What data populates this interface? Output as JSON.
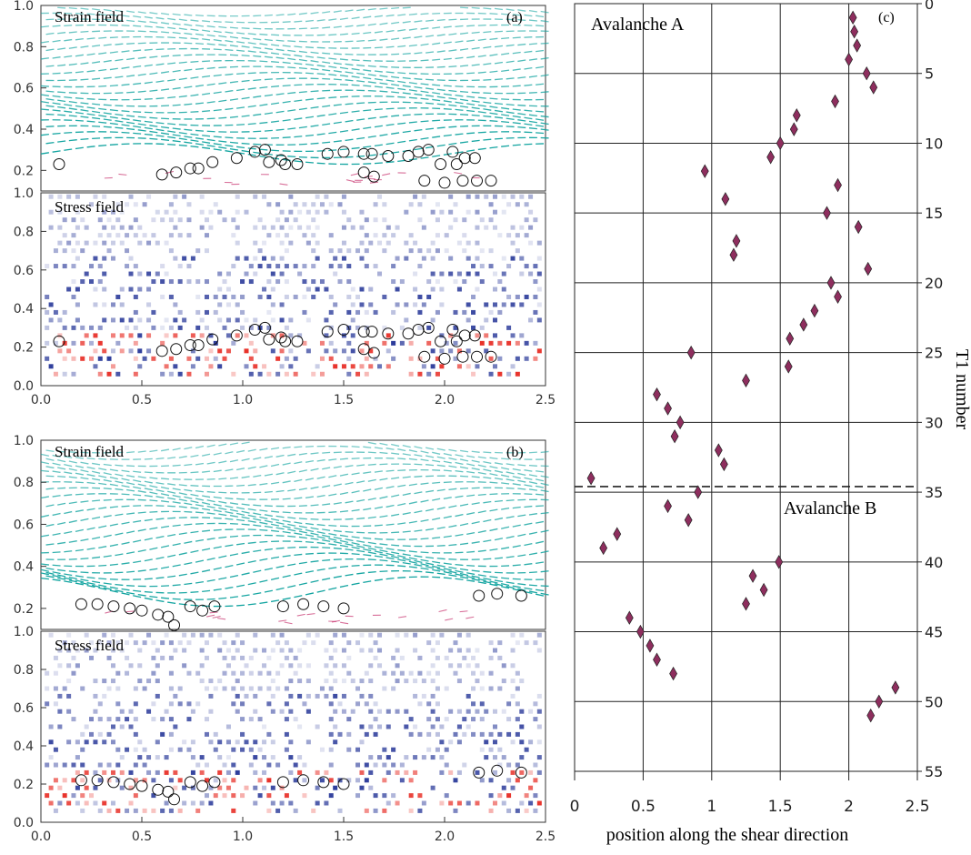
{
  "chart_data": [
    {
      "type": "scatter",
      "panel": "(a)",
      "subpanel": "Strain field",
      "title": "Strain field",
      "xlim": [
        0,
        2.5
      ],
      "ylim": [
        0,
        1.0
      ],
      "yticks": [
        "0.2",
        "0.4",
        "0.6",
        "0.8",
        "1.0"
      ],
      "xlabel": "",
      "ylabel": "",
      "series": [
        {
          "name": "",
          "marker": "open-circle",
          "points": [
            [
              0.09,
              0.23
            ],
            [
              0.6,
              0.18
            ],
            [
              0.67,
              0.19
            ],
            [
              0.74,
              0.21
            ],
            [
              0.78,
              0.21
            ],
            [
              0.85,
              0.24
            ],
            [
              0.97,
              0.26
            ],
            [
              1.06,
              0.29
            ],
            [
              1.11,
              0.3
            ],
            [
              1.13,
              0.24
            ],
            [
              1.19,
              0.25
            ],
            [
              1.21,
              0.23
            ],
            [
              1.27,
              0.23
            ],
            [
              1.42,
              0.28
            ],
            [
              1.5,
              0.29
            ],
            [
              1.6,
              0.28
            ],
            [
              1.64,
              0.28
            ],
            [
              1.72,
              0.27
            ],
            [
              1.82,
              0.27
            ],
            [
              1.87,
              0.29
            ],
            [
              1.92,
              0.3
            ],
            [
              2.04,
              0.29
            ],
            [
              2.1,
              0.26
            ],
            [
              2.15,
              0.26
            ],
            [
              1.6,
              0.19
            ],
            [
              1.65,
              0.17
            ],
            [
              1.9,
              0.15
            ],
            [
              1.98,
              0.23
            ],
            [
              2.06,
              0.23
            ],
            [
              2.0,
              0.14
            ],
            [
              2.09,
              0.15
            ],
            [
              2.16,
              0.15
            ],
            [
              2.23,
              0.15
            ]
          ]
        }
      ],
      "field_colors": {
        "strain_upper": "#12a4a0",
        "strain_lower": "#c8326e"
      }
    },
    {
      "type": "heatmap",
      "panel": "(a)",
      "subpanel": "Stress field",
      "title": "Stress field",
      "xlim": [
        0,
        2.5
      ],
      "ylim": [
        0,
        1.0
      ],
      "xticks": [
        "0.0",
        "0.5",
        "1.0",
        "1.5",
        "2.0",
        "2.5"
      ],
      "yticks": [
        "0.0",
        "0.2",
        "0.4",
        "0.6",
        "0.8",
        "1.0"
      ],
      "series": [
        {
          "name": "",
          "marker": "open-circle",
          "points": [
            [
              0.09,
              0.23
            ],
            [
              0.6,
              0.18
            ],
            [
              0.67,
              0.19
            ],
            [
              0.74,
              0.21
            ],
            [
              0.78,
              0.21
            ],
            [
              0.85,
              0.24
            ],
            [
              0.97,
              0.26
            ],
            [
              1.06,
              0.29
            ],
            [
              1.11,
              0.3
            ],
            [
              1.13,
              0.24
            ],
            [
              1.19,
              0.25
            ],
            [
              1.21,
              0.23
            ],
            [
              1.27,
              0.23
            ],
            [
              1.42,
              0.28
            ],
            [
              1.5,
              0.29
            ],
            [
              1.6,
              0.28
            ],
            [
              1.64,
              0.28
            ],
            [
              1.72,
              0.27
            ],
            [
              1.82,
              0.27
            ],
            [
              1.87,
              0.29
            ],
            [
              1.92,
              0.3
            ],
            [
              2.04,
              0.29
            ],
            [
              2.1,
              0.26
            ],
            [
              2.15,
              0.26
            ],
            [
              1.6,
              0.19
            ],
            [
              1.65,
              0.17
            ],
            [
              1.9,
              0.15
            ],
            [
              1.98,
              0.23
            ],
            [
              2.06,
              0.23
            ],
            [
              2.0,
              0.14
            ],
            [
              2.09,
              0.15
            ],
            [
              2.16,
              0.15
            ],
            [
              2.23,
              0.15
            ]
          ]
        }
      ],
      "field_colors": {
        "positive": "#e8322a",
        "negative": "#2a3a9a"
      }
    },
    {
      "type": "scatter",
      "panel": "(b)",
      "subpanel": "Strain field",
      "title": "Strain field",
      "xlim": [
        0,
        2.5
      ],
      "ylim": [
        0,
        1.0
      ],
      "yticks": [
        "0.2",
        "0.4",
        "0.6",
        "0.8",
        "1.0"
      ],
      "series": [
        {
          "name": "",
          "marker": "open-circle",
          "points": [
            [
              0.2,
              0.22
            ],
            [
              0.28,
              0.22
            ],
            [
              0.36,
              0.21
            ],
            [
              0.44,
              0.2
            ],
            [
              0.5,
              0.19
            ],
            [
              0.58,
              0.17
            ],
            [
              0.63,
              0.16
            ],
            [
              0.66,
              0.12
            ],
            [
              0.74,
              0.21
            ],
            [
              0.8,
              0.19
            ],
            [
              0.86,
              0.21
            ],
            [
              1.2,
              0.21
            ],
            [
              1.3,
              0.22
            ],
            [
              1.4,
              0.21
            ],
            [
              1.5,
              0.2
            ],
            [
              2.17,
              0.26
            ],
            [
              2.26,
              0.27
            ],
            [
              2.38,
              0.26
            ]
          ]
        }
      ],
      "field_colors": {
        "strain_upper": "#12a4a0",
        "strain_lower": "#c8326e"
      }
    },
    {
      "type": "heatmap",
      "panel": "(b)",
      "subpanel": "Stress field",
      "title": "Stress field",
      "xlim": [
        0,
        2.5
      ],
      "ylim": [
        0,
        1.0
      ],
      "xticks": [
        "0.0",
        "0.5",
        "1.0",
        "1.5",
        "2.0",
        "2.5"
      ],
      "yticks": [
        "0.0",
        "0.2",
        "0.4",
        "0.6",
        "0.8",
        "1.0"
      ],
      "series": [
        {
          "name": "",
          "marker": "open-circle",
          "points": [
            [
              0.2,
              0.22
            ],
            [
              0.28,
              0.22
            ],
            [
              0.36,
              0.21
            ],
            [
              0.44,
              0.2
            ],
            [
              0.5,
              0.19
            ],
            [
              0.58,
              0.17
            ],
            [
              0.63,
              0.16
            ],
            [
              0.66,
              0.12
            ],
            [
              0.74,
              0.21
            ],
            [
              0.8,
              0.19
            ],
            [
              0.86,
              0.21
            ],
            [
              1.2,
              0.21
            ],
            [
              1.3,
              0.22
            ],
            [
              1.4,
              0.21
            ],
            [
              1.5,
              0.2
            ],
            [
              2.17,
              0.26
            ],
            [
              2.26,
              0.27
            ],
            [
              2.38,
              0.26
            ]
          ]
        }
      ],
      "field_colors": {
        "positive": "#e8322a",
        "negative": "#2a3a9a"
      }
    },
    {
      "type": "scatter",
      "panel": "(c)",
      "title": "",
      "xlabel": "position along the shear direction",
      "ylabel": "T1 number",
      "xlim": [
        0,
        2.5
      ],
      "ylim": [
        55,
        0
      ],
      "xticks": [
        "0",
        "0.5",
        "1",
        "1.5",
        "2",
        "2.5"
      ],
      "yticks": [
        "0",
        "5",
        "10",
        "15",
        "20",
        "25",
        "30",
        "35",
        "40",
        "45",
        "50",
        "55"
      ],
      "grid": true,
      "yaxis_side": "right",
      "marker_color": "#8e2e5e",
      "separator_y": 34.6,
      "annotations": [
        "Avalanche A",
        "Avalanche B"
      ],
      "series": [
        {
          "name": "",
          "marker": "diamond",
          "points": [
            [
              2.03,
              1
            ],
            [
              2.04,
              2
            ],
            [
              2.06,
              3
            ],
            [
              2.0,
              4
            ],
            [
              2.13,
              5
            ],
            [
              2.18,
              6
            ],
            [
              1.9,
              7
            ],
            [
              1.62,
              8
            ],
            [
              1.6,
              9
            ],
            [
              1.5,
              10
            ],
            [
              1.43,
              11
            ],
            [
              0.95,
              12
            ],
            [
              1.92,
              13
            ],
            [
              1.1,
              14
            ],
            [
              1.84,
              15
            ],
            [
              2.07,
              16
            ],
            [
              1.18,
              17
            ],
            [
              1.16,
              18
            ],
            [
              2.14,
              19
            ],
            [
              1.87,
              20
            ],
            [
              1.92,
              21
            ],
            [
              1.75,
              22
            ],
            [
              1.67,
              23
            ],
            [
              1.57,
              24
            ],
            [
              0.85,
              25
            ],
            [
              1.56,
              26
            ],
            [
              1.25,
              27
            ],
            [
              0.6,
              28
            ],
            [
              0.68,
              29
            ],
            [
              0.77,
              30
            ],
            [
              0.73,
              31
            ],
            [
              1.05,
              32
            ],
            [
              1.09,
              33
            ],
            [
              0.12,
              34
            ],
            [
              0.9,
              35
            ],
            [
              0.68,
              36
            ],
            [
              0.83,
              37
            ],
            [
              0.31,
              38
            ],
            [
              0.21,
              39
            ],
            [
              1.49,
              40
            ],
            [
              1.3,
              41
            ],
            [
              1.38,
              42
            ],
            [
              1.25,
              43
            ],
            [
              0.4,
              44
            ],
            [
              0.48,
              45
            ],
            [
              0.55,
              46
            ],
            [
              0.6,
              47
            ],
            [
              0.72,
              48
            ],
            [
              2.34,
              49
            ],
            [
              2.22,
              50
            ],
            [
              2.16,
              51
            ]
          ]
        }
      ]
    }
  ]
}
